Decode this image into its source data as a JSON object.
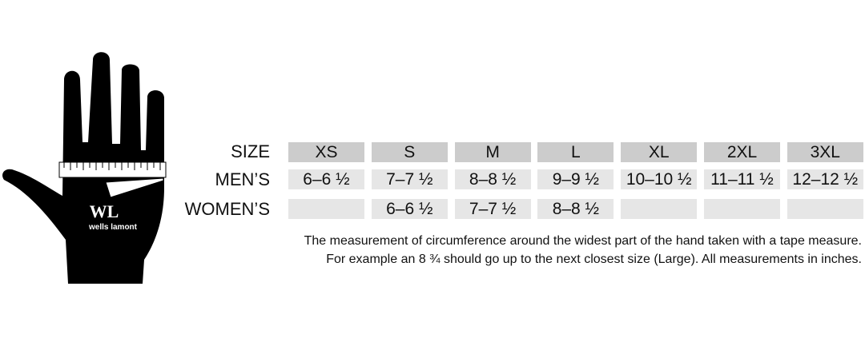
{
  "brand": {
    "logo_text": "wells lamont",
    "logo_mark": "WL"
  },
  "table": {
    "row_labels": {
      "size": "SIZE",
      "men": "MEN’S",
      "women": "WOMEN’S"
    },
    "sizes": [
      "XS",
      "S",
      "M",
      "L",
      "XL",
      "2XL",
      "3XL"
    ],
    "men": [
      "6–6 ½",
      "7–7 ½",
      "8–8 ½",
      "9–9 ½",
      "10–10 ½",
      "11–11 ½",
      "12–12 ½"
    ],
    "women": [
      "",
      "6–6 ½",
      "7–7 ½",
      "8–8 ½",
      "",
      "",
      ""
    ]
  },
  "notes": {
    "line1": "The measurement of circumference around the widest part of the hand taken with a tape measure.",
    "line2": "For example an 8 ¾ should go up to the next closest size (Large). All measurements in inches."
  },
  "colors": {
    "header_cell": "#cccccc",
    "value_cell": "#e6e6e6",
    "hand": "#000000"
  }
}
